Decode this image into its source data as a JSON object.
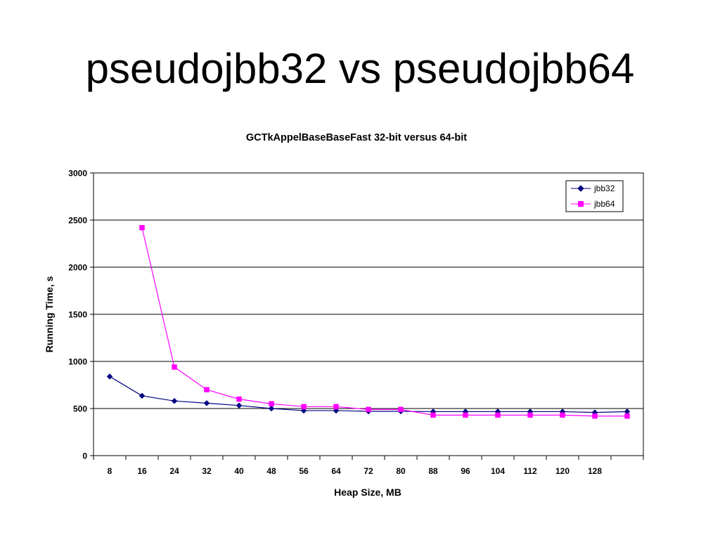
{
  "slide": {
    "title": "pseudojbb32 vs pseudojbb64"
  },
  "chart_data": {
    "type": "line",
    "title": "GCTkAppelBaseBaseFast 32-bit versus 64-bit",
    "xlabel": "Heap Size, MB",
    "ylabel": "Running Time, s",
    "categories": [
      "8",
      "16",
      "24",
      "32",
      "40",
      "48",
      "56",
      "64",
      "72",
      "80",
      "88",
      "96",
      "104",
      "112",
      "120",
      "128",
      ""
    ],
    "ylim": [
      0,
      3000
    ],
    "yticks": [
      0,
      500,
      1000,
      1500,
      2000,
      2500,
      3000
    ],
    "grid": "horizontal",
    "legend_position": "top-right",
    "series": [
      {
        "name": "jbb32",
        "color": "#000080",
        "marker": "diamond",
        "values": [
          840,
          635,
          580,
          557,
          532,
          500,
          478,
          478,
          470,
          470,
          467,
          467,
          467,
          467,
          467,
          458,
          467
        ]
      },
      {
        "name": "jbb64",
        "color": "#ff00ff",
        "marker": "square",
        "values": [
          null,
          2420,
          940,
          700,
          600,
          550,
          520,
          520,
          490,
          490,
          430,
          430,
          430,
          430,
          430,
          420,
          420
        ]
      }
    ]
  }
}
